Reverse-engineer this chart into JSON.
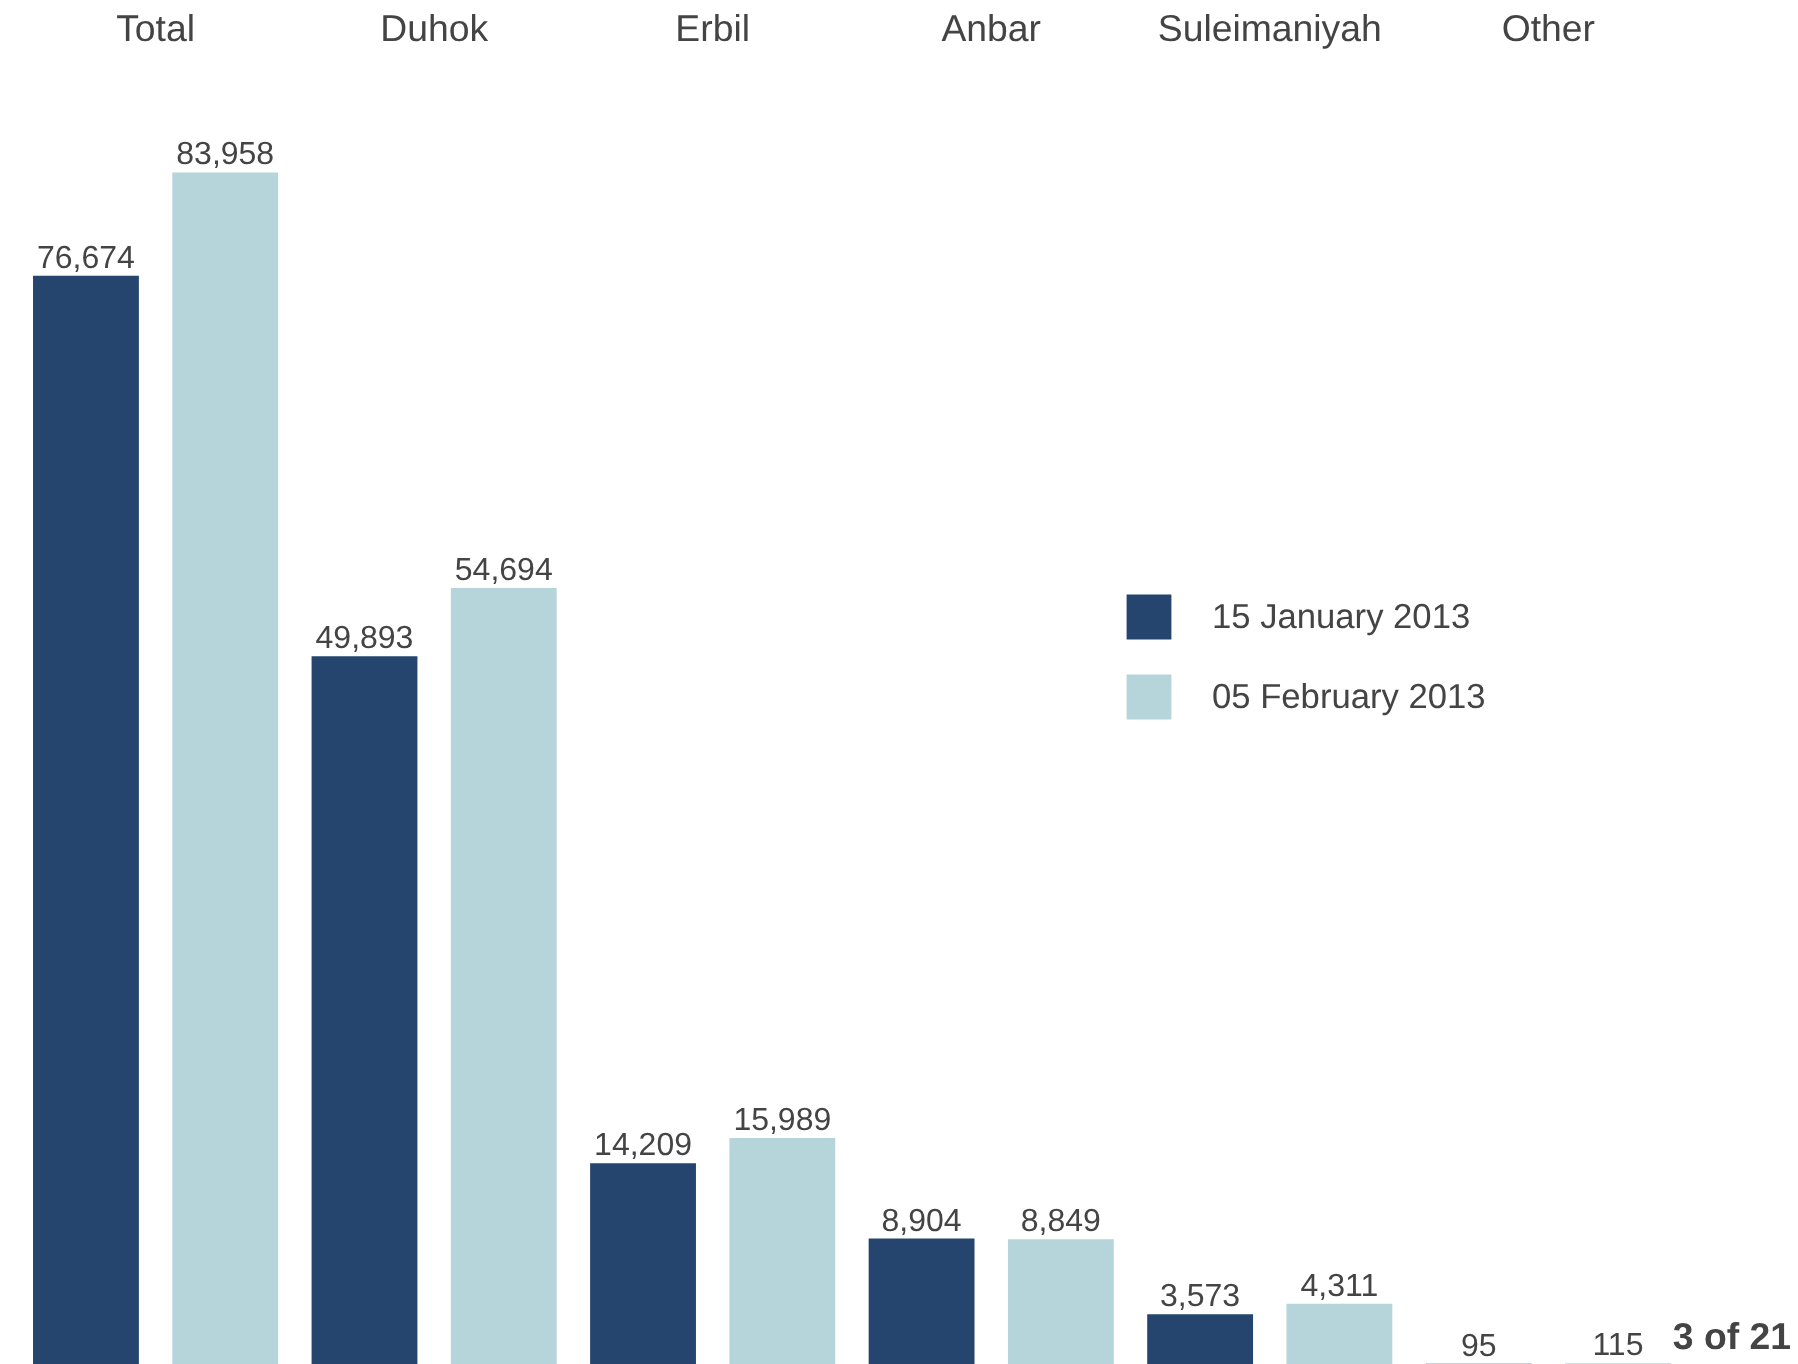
{
  "chart_data": {
    "type": "bar",
    "categories": [
      "Total",
      "Duhok",
      "Erbil",
      "Anbar",
      "Suleimaniyah",
      "Other"
    ],
    "series": [
      {
        "name": "15 January 2013",
        "color": "#25446e",
        "values": [
          76674,
          49893,
          14209,
          8904,
          3573,
          95
        ],
        "value_labels": [
          "76,674",
          "49,893",
          "14,209",
          "8,904",
          "3,573",
          "95"
        ]
      },
      {
        "name": "05 February 2013",
        "color": "#b5d5da",
        "values": [
          83958,
          54694,
          15989,
          8849,
          4311,
          115
        ],
        "value_labels": [
          "83,958",
          "54,694",
          "15,989",
          "8,849",
          "4,311",
          "115"
        ]
      }
    ],
    "legend": "right",
    "grid": false,
    "annotations": [
      "3 of 21"
    ]
  }
}
